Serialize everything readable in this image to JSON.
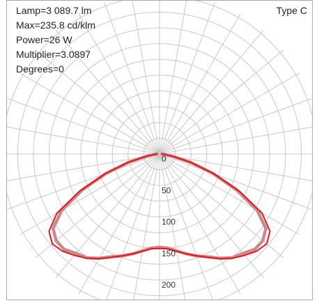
{
  "info": {
    "lamp": "Lamp=3 089.7 lm",
    "max": "Max=235.8 cd/klm",
    "power": "Power=26 W",
    "multiplier": "Multiplier=3.0897",
    "degrees": "Degrees=0"
  },
  "type_label": "Type C",
  "colors": {
    "grid": "#c8c8c8",
    "frame": "#a8a8a8",
    "series_primary": "#e8141c",
    "series_secondary": "#c98a8c",
    "background": "#ffffff"
  },
  "chart_data": {
    "type": "polar",
    "r_ticks": [
      0,
      50,
      100,
      150,
      200
    ],
    "r_tick_labels": [
      "0",
      "50",
      "100",
      "150",
      "200"
    ],
    "angle_step_deg": 10,
    "grid": true,
    "series": [
      {
        "angles_deg": [
          0,
          5,
          10,
          15,
          20,
          25,
          30,
          35,
          40,
          45,
          50,
          55,
          60,
          65,
          70,
          75,
          80,
          85,
          90
        ],
        "values": [
          148,
          150,
          156,
          164,
          172,
          180,
          191,
          201,
          206,
          214,
          214,
          206,
          179,
          135,
          90,
          50,
          20,
          7,
          4
        ]
      },
      {
        "angles_deg": [
          0,
          5,
          10,
          15,
          20,
          25,
          30,
          35,
          40,
          45,
          50,
          55,
          60,
          65,
          70,
          75,
          80,
          85,
          90
        ],
        "values": [
          150,
          151,
          157,
          164,
          172,
          181,
          192,
          202,
          210,
          218,
          222,
          214,
          188,
          140,
          92,
          51,
          21,
          8,
          4
        ]
      }
    ]
  }
}
